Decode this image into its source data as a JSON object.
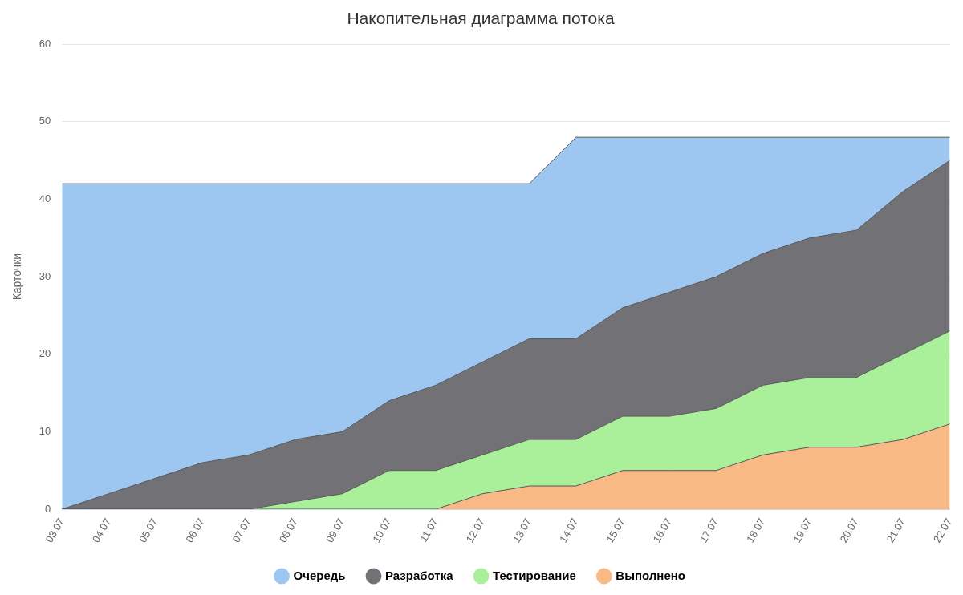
{
  "chart_data": {
    "type": "area",
    "title": "Накопительная диаграмма потока",
    "ylabel": "Карточки",
    "categories": [
      "03.07",
      "04.07",
      "05.07",
      "06.07",
      "07.07",
      "08.07",
      "09.07",
      "10.07",
      "11.07",
      "12.07",
      "13.07",
      "14.07",
      "15.07",
      "16.07",
      "17.07",
      "18.07",
      "19.07",
      "20.07",
      "21.07",
      "22.07"
    ],
    "stacked": true,
    "series": [
      {
        "name": "Выполнено",
        "color": "#f8b985",
        "values": [
          0,
          0,
          0,
          0,
          0,
          0,
          0,
          0,
          0,
          2,
          3,
          3,
          5,
          5,
          5,
          7,
          8,
          8,
          9,
          11
        ]
      },
      {
        "name": "Тестирование",
        "color": "#aaf09b",
        "values": [
          0,
          0,
          0,
          0,
          0,
          1,
          2,
          5,
          5,
          5,
          6,
          6,
          7,
          7,
          8,
          9,
          9,
          9,
          11,
          12
        ]
      },
      {
        "name": "Разработка",
        "color": "#727175",
        "values": [
          0,
          2,
          4,
          6,
          7,
          8,
          8,
          9,
          11,
          12,
          13,
          13,
          14,
          16,
          17,
          17,
          18,
          19,
          21,
          22
        ]
      },
      {
        "name": "Очередь",
        "color": "#9dc7f1",
        "values": [
          42,
          40,
          38,
          36,
          35,
          33,
          32,
          28,
          26,
          23,
          20,
          26,
          22,
          20,
          18,
          15,
          13,
          12,
          7,
          3
        ]
      }
    ],
    "ylim": [
      0,
      60
    ],
    "yticks": [
      0,
      10,
      20,
      30,
      40,
      50,
      60
    ],
    "grid": "y",
    "legend": "bottom",
    "marker": "none"
  }
}
